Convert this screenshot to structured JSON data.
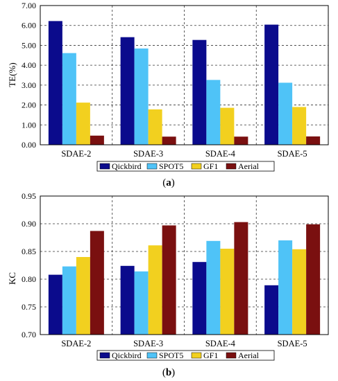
{
  "colors": {
    "series": [
      "#0b0b8c",
      "#4fc3f7",
      "#f2d01f",
      "#7a1010"
    ]
  },
  "chart_data": [
    {
      "type": "bar",
      "ylabel": "TE(%)",
      "xlabel": "",
      "ylim": [
        0,
        7
      ],
      "yticks": [
        "0.00",
        "1.00",
        "2.00",
        "3.00",
        "4.00",
        "5.00",
        "6.00",
        "7.00"
      ],
      "categories": [
        "SDAE-2",
        "SDAE-3",
        "SDAE-4",
        "SDAE-5"
      ],
      "series": [
        {
          "name": "Qickbird",
          "values": [
            6.22,
            5.41,
            5.27,
            6.04
          ]
        },
        {
          "name": "SPOT5",
          "values": [
            4.61,
            4.84,
            3.26,
            3.12
          ]
        },
        {
          "name": "GF1",
          "values": [
            2.12,
            1.78,
            1.86,
            1.9
          ]
        },
        {
          "name": "Aerial",
          "values": [
            0.46,
            0.41,
            0.41,
            0.42
          ]
        }
      ],
      "grid": "dashed",
      "legend_position": "bottom",
      "caption": "(a)"
    },
    {
      "type": "bar",
      "ylabel": "KC",
      "xlabel": "",
      "ylim": [
        0.7,
        0.95
      ],
      "yticks": [
        "0.70",
        "0.75",
        "0.80",
        "0.85",
        "0.90",
        "0.95"
      ],
      "categories": [
        "SDAE-2",
        "SDAE-3",
        "SDAE-4",
        "SDAE-5"
      ],
      "series": [
        {
          "name": "Qickbird",
          "values": [
            0.808,
            0.824,
            0.831,
            0.789
          ]
        },
        {
          "name": "SPOT5",
          "values": [
            0.823,
            0.814,
            0.869,
            0.87
          ]
        },
        {
          "name": "GF1",
          "values": [
            0.84,
            0.861,
            0.855,
            0.854
          ]
        },
        {
          "name": "Aerial",
          "values": [
            0.887,
            0.897,
            0.903,
            0.899
          ]
        }
      ],
      "grid": "dashed",
      "legend_position": "bottom",
      "caption": "(b)"
    }
  ]
}
